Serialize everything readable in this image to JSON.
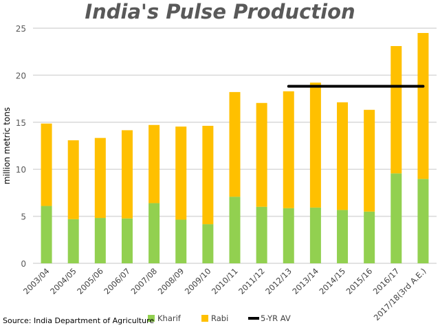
{
  "chart_data": {
    "type": "bar",
    "stacked": true,
    "title": "India's Pulse Production",
    "ylabel": "million metric tons",
    "ylim": [
      0,
      25
    ],
    "yticks": [
      0,
      5,
      10,
      15,
      20,
      25
    ],
    "grid": true,
    "legend_placement": "bottom",
    "categories": [
      "2003/04",
      "2004/05",
      "2005/06",
      "2006/07",
      "2007/08",
      "2008/09",
      "2009/10",
      "2010/11",
      "2011/12",
      "2012/13",
      "2013/14",
      "2014/15",
      "2015/16",
      "2016/17",
      "2017/18(3rd A.E.)"
    ],
    "series": [
      {
        "name": "Kharif",
        "color": "#92D050",
        "values": [
          6.1,
          4.69,
          4.82,
          4.77,
          6.4,
          4.64,
          4.16,
          7.08,
          6.01,
          5.86,
          5.93,
          5.67,
          5.5,
          9.56,
          8.97
        ]
      },
      {
        "name": "Rabi",
        "color": "#FFC000",
        "values": [
          8.76,
          8.39,
          8.51,
          9.38,
          8.31,
          9.9,
          10.46,
          11.13,
          11.04,
          12.43,
          13.28,
          11.45,
          10.82,
          13.54,
          15.52
        ]
      }
    ],
    "line": {
      "name": "5-YR AV",
      "color": "#000000",
      "value": 18.82,
      "from": "2012/13",
      "to": "2017/18(3rd A.E.)"
    },
    "source": "Source: India Department of Agriculture"
  }
}
